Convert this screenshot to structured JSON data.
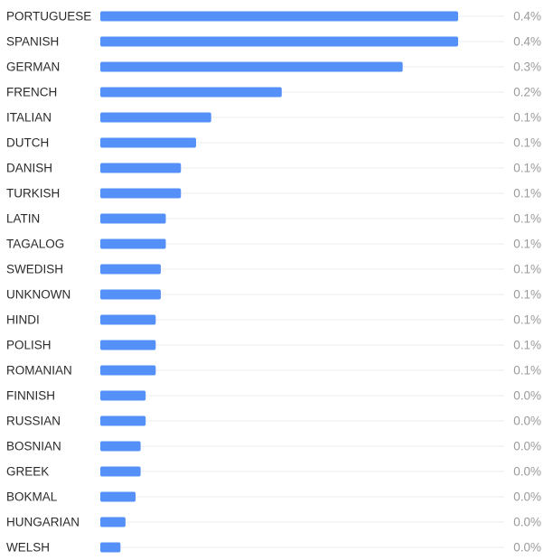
{
  "colors": {
    "bar": "#5590f8",
    "grid": "#ececec",
    "label": "#2b2b2b",
    "value": "#9a9a9a"
  },
  "chart_data": {
    "type": "bar",
    "orientation": "horizontal",
    "title": "",
    "xlabel": "",
    "ylabel": "",
    "grid": true,
    "categories": [
      "PORTUGUESE",
      "SPANISH",
      "GERMAN",
      "FRENCH",
      "ITALIAN",
      "DUTCH",
      "DANISH",
      "TURKISH",
      "LATIN",
      "TAGALOG",
      "SWEDISH",
      "UNKNOWN",
      "HINDI",
      "POLISH",
      "ROMANIAN",
      "FINNISH",
      "RUSSIAN",
      "BOSNIAN",
      "GREEK",
      "BOKMAL",
      "HUNGARIAN",
      "WELSH"
    ],
    "values": [
      0.355,
      0.355,
      0.3,
      0.18,
      0.11,
      0.095,
      0.08,
      0.08,
      0.065,
      0.065,
      0.06,
      0.06,
      0.055,
      0.055,
      0.055,
      0.045,
      0.045,
      0.04,
      0.04,
      0.035,
      0.025,
      0.02
    ],
    "value_labels": [
      "0.4%",
      "0.4%",
      "0.3%",
      "0.2%",
      "0.1%",
      "0.1%",
      "0.1%",
      "0.1%",
      "0.1%",
      "0.1%",
      "0.1%",
      "0.1%",
      "0.1%",
      "0.1%",
      "0.1%",
      "0.0%",
      "0.0%",
      "0.0%",
      "0.0%",
      "0.0%",
      "0.0%",
      "0.0%"
    ],
    "xlim": [
      0,
      0.355
    ],
    "unit": "%"
  }
}
